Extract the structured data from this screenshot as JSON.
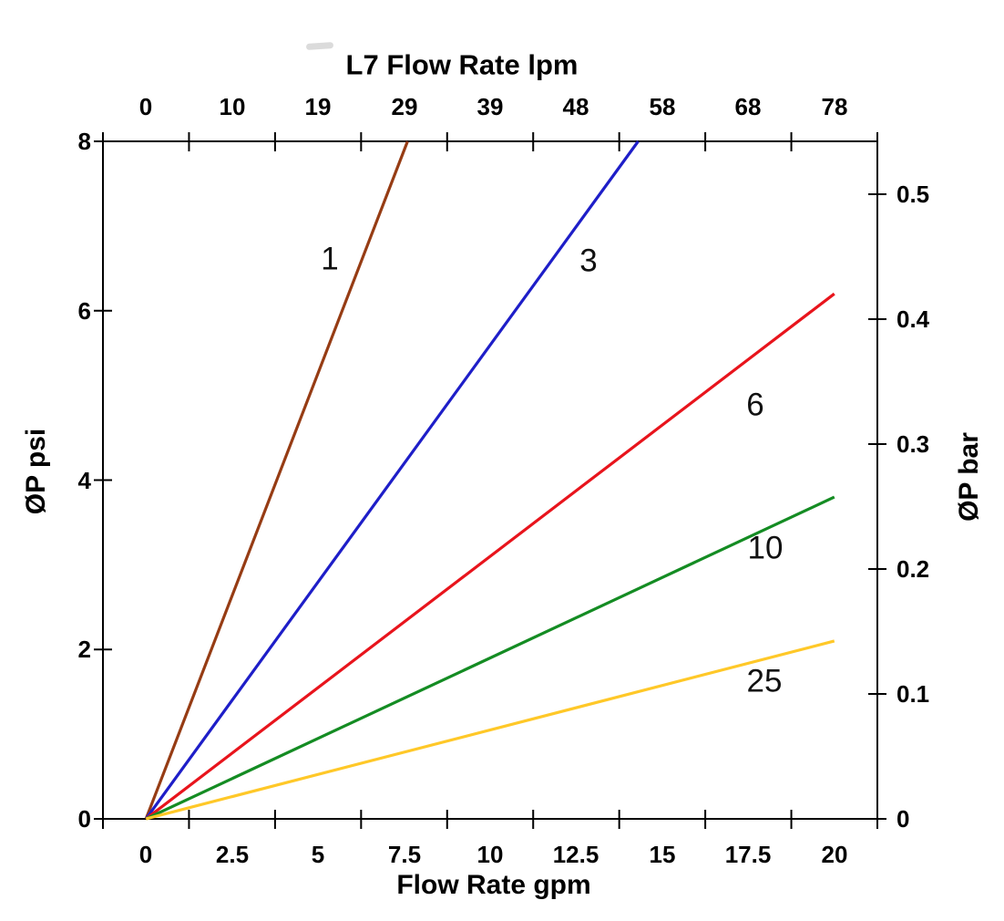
{
  "chart_data": {
    "type": "line",
    "title": "L7 Flow Rate lpm",
    "axes": {
      "top": {
        "title": "L7 Flow Rate lpm",
        "tick_labels": [
          "0",
          "10",
          "19",
          "29",
          "39",
          "48",
          "58",
          "68",
          "78"
        ]
      },
      "bottom": {
        "title": "Flow Rate gpm",
        "tick_labels": [
          "0",
          "2.5",
          "5",
          "7.5",
          "10",
          "12.5",
          "15",
          "17.5",
          "20"
        ],
        "range": [
          0,
          20
        ]
      },
      "left": {
        "title": "ØP psi",
        "tick_labels": [
          "8",
          "6",
          "4",
          "2",
          "0"
        ],
        "range": [
          0,
          8
        ]
      },
      "right": {
        "title": "ØP bar",
        "tick_labels": [
          "0.5",
          "0.4",
          "0.3",
          "0.2",
          "0.1",
          "0"
        ],
        "range": [
          0,
          0.55
        ]
      }
    },
    "grid": "off",
    "legend": "inline-labels-on-curves",
    "series": [
      {
        "label": "1",
        "color": "#963C14",
        "points_gpm_psi": [
          [
            0,
            0
          ],
          [
            7.6,
            8
          ]
        ]
      },
      {
        "label": "3",
        "color": "#1E1EC8",
        "points_gpm_psi": [
          [
            0,
            0
          ],
          [
            14.3,
            8
          ]
        ]
      },
      {
        "label": "6",
        "color": "#E8141C",
        "points_gpm_psi": [
          [
            0,
            0
          ],
          [
            20,
            6.2
          ]
        ]
      },
      {
        "label": "10",
        "color": "#148C23",
        "points_gpm_psi": [
          [
            0,
            0
          ],
          [
            20,
            3.8
          ]
        ]
      },
      {
        "label": "25",
        "color": "#FFC828",
        "points_gpm_psi": [
          [
            0,
            0
          ],
          [
            20,
            2.1
          ]
        ]
      }
    ]
  }
}
